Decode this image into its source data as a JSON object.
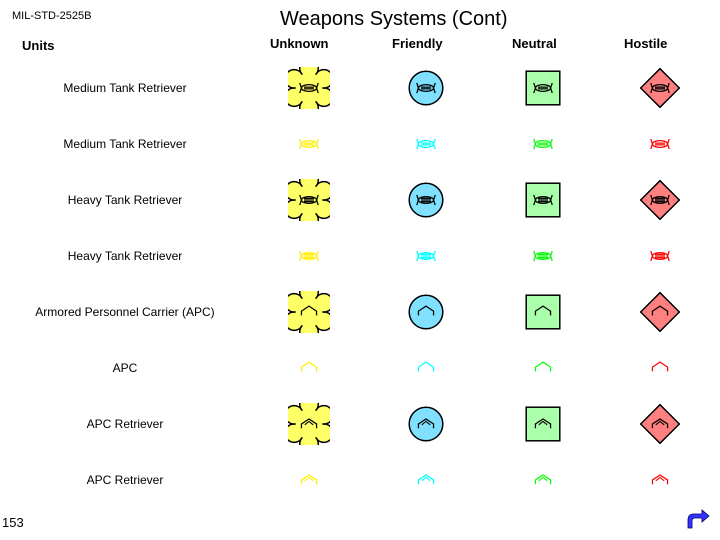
{
  "standard": "MIL-STD-2525B",
  "title": "Weapons Systems (Cont)",
  "units_label": "Units",
  "page_number": "153",
  "columns": [
    {
      "key": "unknown",
      "label": "Unknown",
      "frame_fill": "#ffff66",
      "frame_stroke": "#000000",
      "glyph_stroke": "#ffee00"
    },
    {
      "key": "friendly",
      "label": "Friendly",
      "frame_fill": "#80e0ff",
      "frame_stroke": "#000000",
      "glyph_stroke": "#00ffff"
    },
    {
      "key": "neutral",
      "label": "Neutral",
      "frame_fill": "#aaffaa",
      "frame_stroke": "#000000",
      "glyph_stroke": "#00ff00"
    },
    {
      "key": "hostile",
      "label": "Hostile",
      "frame_fill": "#ff8080",
      "frame_stroke": "#000000",
      "glyph_stroke": "#ff0000"
    }
  ],
  "rows": [
    {
      "label": "Medium Tank Retriever",
      "glyph": "tank2",
      "framed": true
    },
    {
      "label": "Medium Tank Retriever",
      "glyph": "tank2",
      "framed": false
    },
    {
      "label": "Heavy Tank Retriever",
      "glyph": "tank3",
      "framed": true
    },
    {
      "label": "Heavy Tank Retriever",
      "glyph": "tank3",
      "framed": false
    },
    {
      "label": "Armored Personnel Carrier (APC)",
      "glyph": "apc",
      "framed": true
    },
    {
      "label": "APC",
      "glyph": "apc",
      "framed": false
    },
    {
      "label": "APC Retriever",
      "glyph": "apcret",
      "framed": true
    },
    {
      "label": "APC Retriever",
      "glyph": "apcret",
      "framed": false
    }
  ],
  "col_positions": {
    "unknown": 270,
    "friendly": 390,
    "neutral": 510,
    "hostile": 620
  },
  "symbol_size": 42,
  "nav_icon_color": "#3333ff"
}
